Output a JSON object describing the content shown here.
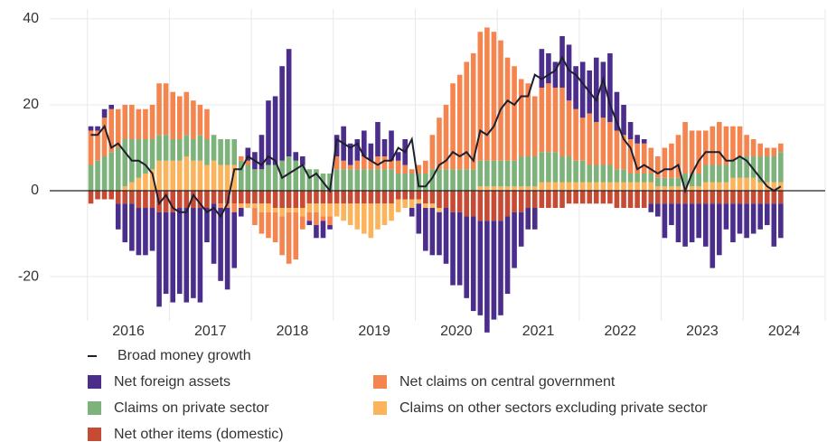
{
  "chart_data": {
    "type": "stacked-bar-line",
    "x": [
      2016.042,
      2016.125,
      2016.208,
      2016.292,
      2016.375,
      2016.458,
      2016.542,
      2016.625,
      2016.708,
      2016.792,
      2016.875,
      2016.958,
      2017.042,
      2017.125,
      2017.208,
      2017.292,
      2017.375,
      2017.458,
      2017.542,
      2017.625,
      2017.708,
      2017.792,
      2017.875,
      2017.958,
      2018.042,
      2018.125,
      2018.208,
      2018.292,
      2018.375,
      2018.458,
      2018.542,
      2018.625,
      2018.708,
      2018.792,
      2018.875,
      2018.958,
      2019.042,
      2019.125,
      2019.208,
      2019.292,
      2019.375,
      2019.458,
      2019.542,
      2019.625,
      2019.708,
      2019.792,
      2019.875,
      2019.958,
      2020.042,
      2020.125,
      2020.208,
      2020.292,
      2020.375,
      2020.458,
      2020.542,
      2020.625,
      2020.708,
      2020.792,
      2020.875,
      2020.958,
      2021.042,
      2021.125,
      2021.208,
      2021.292,
      2021.375,
      2021.458,
      2021.542,
      2021.625,
      2021.708,
      2021.792,
      2021.875,
      2021.958,
      2022.042,
      2022.125,
      2022.208,
      2022.292,
      2022.375,
      2022.458,
      2022.542,
      2022.625,
      2022.708,
      2022.792,
      2022.875,
      2022.958,
      2023.042,
      2023.125,
      2023.208,
      2023.292,
      2023.375,
      2023.458,
      2023.542,
      2023.625,
      2023.708,
      2023.792,
      2023.875,
      2023.958,
      2024.042,
      2024.125,
      2024.208,
      2024.292,
      2024.375,
      2024.458
    ],
    "xlim": [
      2015.54,
      2025
    ],
    "xticks": [
      {
        "value": 2016.5,
        "label": "2016"
      },
      {
        "value": 2017.5,
        "label": "2017"
      },
      {
        "value": 2018.5,
        "label": "2018"
      },
      {
        "value": 2019.5,
        "label": "2019"
      },
      {
        "value": 2020.5,
        "label": "2020"
      },
      {
        "value": 2021.5,
        "label": "2021"
      },
      {
        "value": 2022.5,
        "label": "2022"
      },
      {
        "value": 2023.5,
        "label": "2023"
      },
      {
        "value": 2024.5,
        "label": "2024"
      }
    ],
    "xgrid": [
      2016,
      2017,
      2018,
      2019,
      2020,
      2021,
      2022,
      2023,
      2024,
      2025
    ],
    "ylim": [
      -30.3,
      42.3
    ],
    "yticks": [
      -20,
      0,
      20,
      40
    ],
    "grid": true,
    "line": {
      "name": "Broad money growth",
      "color": "#1f1f2e",
      "values": [
        13,
        13,
        15,
        10,
        11,
        9,
        7,
        7,
        6,
        4,
        -3,
        -1,
        -4,
        -5,
        -5,
        -1,
        -3,
        -5,
        -4,
        -6,
        -3,
        5,
        5,
        8,
        7,
        6,
        8,
        7,
        3,
        4,
        5,
        6,
        3,
        4,
        2,
        0,
        12,
        11,
        10,
        11,
        8,
        7,
        6,
        7,
        7,
        10,
        9,
        12,
        1,
        1,
        3,
        6,
        7,
        9,
        8,
        9,
        7,
        14,
        13,
        15,
        19,
        21,
        20,
        22,
        22,
        27,
        26,
        27,
        28,
        31,
        28,
        27,
        25,
        23,
        21,
        26,
        20,
        16,
        12,
        10,
        5,
        6,
        5,
        4,
        5,
        5,
        6,
        0,
        4,
        7,
        9,
        9,
        9,
        7,
        7,
        8,
        7,
        5,
        3,
        1,
        0,
        1
      ]
    },
    "series": [
      {
        "name": "Net other items (domestic)",
        "color": "#c64a34",
        "values": [
          -3,
          -2,
          -2,
          -2,
          -3,
          -3,
          -3,
          -4,
          -4,
          -4,
          -5,
          -5,
          -5,
          -4,
          -4,
          -4,
          -4,
          -4,
          -3,
          -3,
          -3,
          -3,
          -3,
          -3,
          -3,
          -3,
          -3,
          -4,
          -4,
          -4,
          -4,
          -4,
          -3,
          -3,
          -3,
          -3,
          -3,
          -3,
          -3,
          -3,
          -3,
          -3,
          -3,
          -3,
          -3,
          -2,
          -2,
          -2,
          -2,
          -3,
          -3,
          -4,
          -4,
          -5,
          -5,
          -6,
          -6,
          -7,
          -7,
          -7,
          -7,
          -6,
          -5,
          -5,
          -4,
          -4,
          -4,
          -4,
          -4,
          -4,
          -3,
          -3,
          -3,
          -3,
          -3,
          -3,
          -3,
          -4,
          -4,
          -4,
          -4,
          -4,
          -3,
          -3,
          -3,
          -3,
          -3,
          -3,
          -3,
          -3,
          -3,
          -3,
          -3,
          -3,
          -3,
          -3,
          -3,
          -3,
          -3,
          -3,
          -3,
          -3
        ]
      },
      {
        "name": "Claims on other sectors excluding private sector",
        "color": "#fbb45c",
        "values": [
          0,
          0,
          0,
          0,
          0,
          1,
          2,
          3,
          4,
          5,
          7,
          7,
          7,
          7,
          8,
          7,
          7,
          6,
          7,
          6,
          6,
          6,
          -1,
          -1,
          -1,
          -2,
          -2,
          -1,
          -2,
          -1,
          -1,
          -2,
          -2,
          -2,
          -3,
          -3,
          -3,
          -4,
          -5,
          -6,
          -7,
          -8,
          -6,
          -5,
          -4,
          -3,
          -2,
          -2,
          -1,
          -1,
          -1,
          -1,
          0,
          0,
          0,
          0,
          0,
          1,
          1,
          1,
          1,
          1,
          1,
          1,
          1,
          1,
          2,
          2,
          2,
          2,
          2,
          2,
          2,
          2,
          2,
          2,
          2,
          2,
          2,
          2,
          2,
          2,
          2,
          1,
          1,
          1,
          1,
          1,
          1,
          1,
          2,
          2,
          2,
          2,
          3,
          3,
          3,
          3,
          2,
          2,
          2,
          2
        ]
      },
      {
        "name": "Claims on private sector",
        "color": "#7db27b",
        "values": [
          6,
          7,
          8,
          9,
          10,
          11,
          10,
          9,
          8,
          7,
          6,
          6,
          5,
          5,
          5,
          5,
          6,
          6,
          6,
          6,
          6,
          6,
          7,
          6,
          5,
          5,
          6,
          6,
          7,
          8,
          7,
          6,
          5,
          5,
          4,
          4,
          5,
          5,
          5,
          5,
          5,
          5,
          5,
          5,
          5,
          4,
          4,
          4,
          4,
          4,
          5,
          5,
          5,
          5,
          5,
          5,
          5,
          6,
          6,
          6,
          6,
          6,
          6,
          7,
          7,
          7,
          7,
          7,
          7,
          6,
          6,
          5,
          5,
          4,
          4,
          4,
          4,
          3,
          3,
          2,
          2,
          2,
          2,
          2,
          2,
          2,
          2,
          3,
          3,
          3,
          4,
          4,
          4,
          4,
          4,
          5,
          5,
          5,
          6,
          6,
          6,
          7
        ]
      },
      {
        "name": "Net claims on central government",
        "color": "#f5854f",
        "values": [
          8,
          7,
          9,
          10,
          9,
          8,
          8,
          7,
          7,
          8,
          12,
          12,
          11,
          10,
          10,
          9,
          7,
          7,
          0,
          -1,
          -1,
          -2,
          1,
          1,
          -4,
          -5,
          -6,
          -7,
          -9,
          -12,
          -11,
          -3,
          -2,
          -3,
          -1,
          -2,
          3,
          2,
          1,
          2,
          3,
          2,
          3,
          3,
          2,
          3,
          2,
          1,
          2,
          3,
          8,
          12,
          15,
          20,
          22,
          25,
          27,
          30,
          31,
          30,
          28,
          24,
          22,
          18,
          17,
          14,
          15,
          16,
          15,
          16,
          13,
          12,
          10,
          12,
          10,
          11,
          10,
          9,
          8,
          8,
          7,
          7,
          6,
          5,
          7,
          8,
          10,
          12,
          10,
          10,
          8,
          9,
          10,
          9,
          8,
          7,
          5,
          4,
          3,
          2,
          2,
          2
        ]
      },
      {
        "name": "Net foreign assets",
        "color": "#4b2d8c",
        "values": [
          1,
          1,
          2,
          1,
          -6,
          -9,
          -11,
          -11,
          -11,
          -10,
          -22,
          -19,
          -21,
          -20,
          -22,
          -21,
          -22,
          -8,
          -14,
          -17,
          -19,
          -13,
          -2,
          3,
          4,
          8,
          15,
          16,
          22,
          25,
          2,
          2,
          -1,
          -3,
          -4,
          -1,
          5,
          8,
          5,
          5,
          6,
          4,
          8,
          4,
          7,
          2,
          6,
          -2,
          -7,
          -10,
          -11,
          -10,
          -13,
          -17,
          -17,
          -19,
          -22,
          -22,
          -26,
          -23,
          -22,
          -18,
          -13,
          -8,
          -5,
          -5,
          9,
          7,
          6,
          12,
          13,
          10,
          13,
          10,
          15,
          13,
          16,
          9,
          7,
          4,
          2,
          1,
          -2,
          -3,
          -8,
          -5,
          -9,
          -10,
          -9,
          -8,
          -10,
          -15,
          -12,
          -6,
          -9,
          -7,
          -8,
          -7,
          -6,
          -5,
          -10,
          -8
        ]
      }
    ]
  }
}
